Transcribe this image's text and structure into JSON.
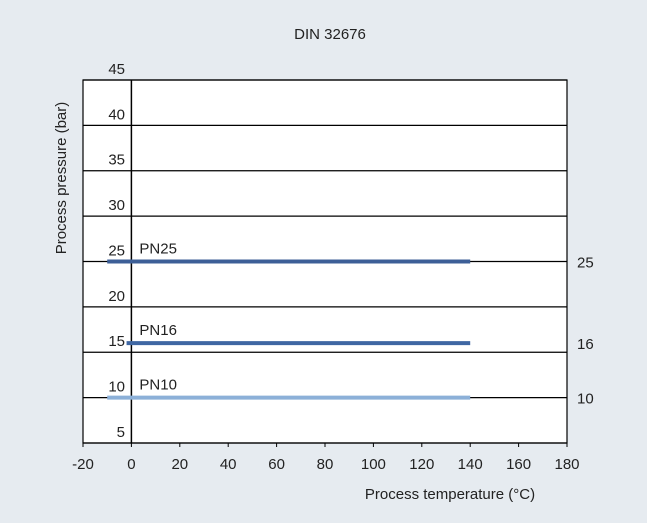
{
  "chart_data": {
    "type": "line",
    "title": "DIN 32676",
    "xlabel": "Process temperature (°C)",
    "ylabel": "Process pressure (bar)",
    "xlim": [
      -20,
      180
    ],
    "xticks": [
      -20,
      0,
      20,
      40,
      60,
      80,
      100,
      120,
      140,
      160,
      180
    ],
    "ylim": [
      5,
      45
    ],
    "yticks": [
      5,
      10,
      15,
      20,
      25,
      30,
      35,
      40,
      45
    ],
    "grid": true,
    "series": [
      {
        "name": "PN25",
        "color": "#3d5f97",
        "x": [
          -10,
          140
        ],
        "values": [
          25,
          25
        ]
      },
      {
        "name": "PN16",
        "color": "#3f67a3",
        "x": [
          -2,
          140
        ],
        "values": [
          16,
          16
        ]
      },
      {
        "name": "PN10",
        "color": "#8cb0d8",
        "x": [
          -10,
          140
        ],
        "values": [
          10,
          10
        ]
      }
    ]
  }
}
